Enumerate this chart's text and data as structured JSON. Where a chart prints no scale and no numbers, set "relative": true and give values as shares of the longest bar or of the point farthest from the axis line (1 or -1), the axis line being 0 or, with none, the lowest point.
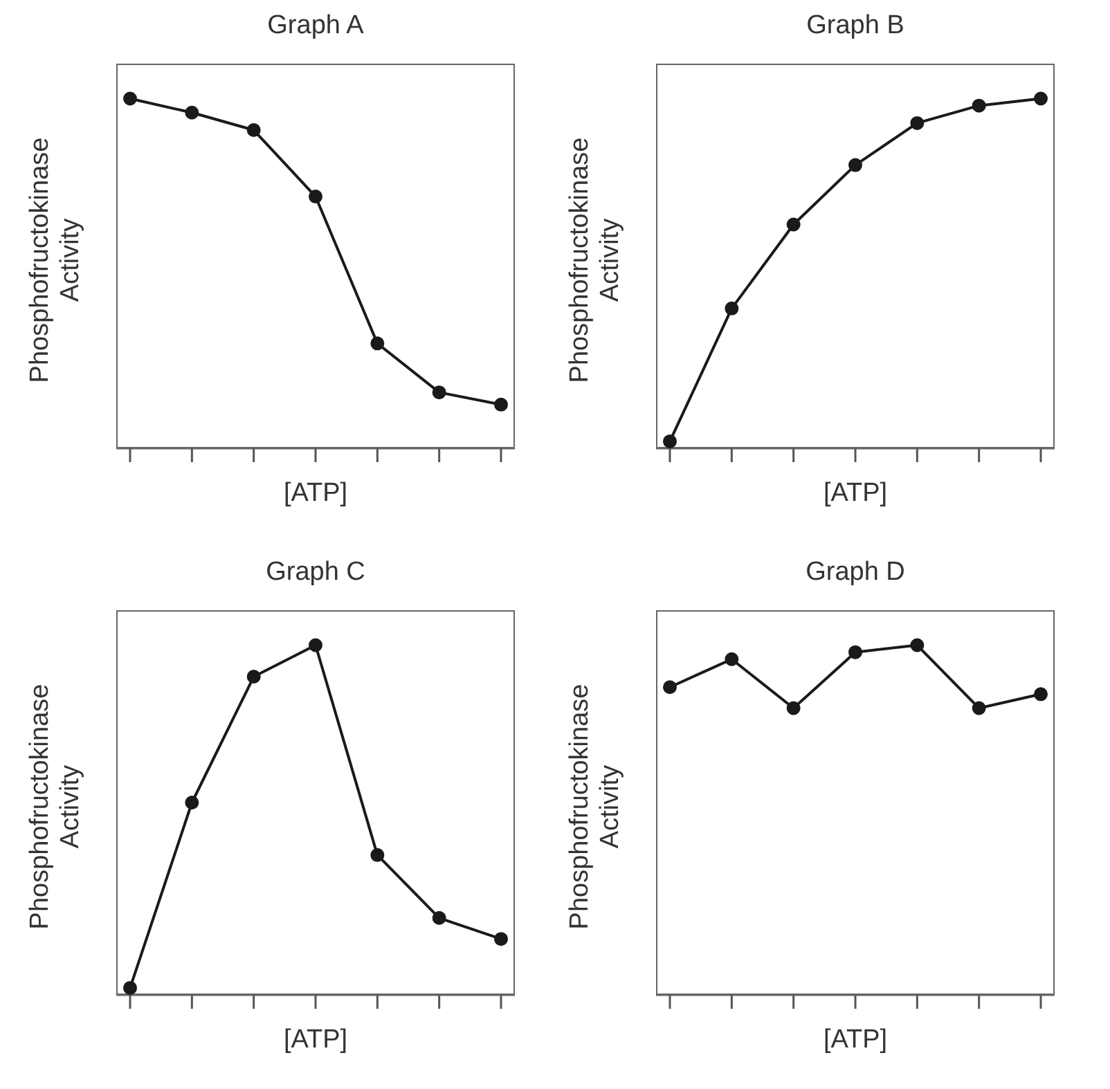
{
  "chart_data": [
    {
      "type": "line",
      "title": "Graph A",
      "xlabel": "[ATP]",
      "ylabel": "Phosphofructokinase Activity",
      "relative": true,
      "marker": "circle",
      "line_style": "solid",
      "categories": [
        null,
        null,
        null,
        null,
        null,
        null,
        null
      ],
      "series": [
        {
          "color": "#1a1a1a",
          "values": [
            1,
            0.96,
            0.91,
            0.72,
            0.3,
            0.16,
            0.125
          ]
        }
      ]
    },
    {
      "type": "line",
      "title": "Graph B",
      "xlabel": "[ATP]",
      "ylabel": "Phosphofructokinase Activity",
      "relative": true,
      "marker": "circle",
      "line_style": "solid",
      "categories": [
        null,
        null,
        null,
        null,
        null,
        null,
        null
      ],
      "series": [
        {
          "color": "#1a1a1a",
          "values": [
            0.02,
            0.4,
            0.64,
            0.81,
            0.93,
            0.98,
            1
          ]
        }
      ]
    },
    {
      "type": "line",
      "title": "Graph C",
      "xlabel": "[ATP]",
      "ylabel": "Phosphofructokinase Activity",
      "relative": true,
      "marker": "circle",
      "line_style": "solid",
      "categories": [
        null,
        null,
        null,
        null,
        null,
        null,
        null
      ],
      "series": [
        {
          "color": "#1a1a1a",
          "values": [
            0.02,
            0.55,
            0.91,
            1,
            0.4,
            0.22,
            0.16
          ]
        }
      ]
    },
    {
      "type": "line",
      "title": "Graph D",
      "xlabel": "[ATP]",
      "ylabel": "Phosphofructokinase Activity",
      "relative": true,
      "marker": "circle",
      "line_style": "solid",
      "categories": [
        null,
        null,
        null,
        null,
        null,
        null,
        null
      ],
      "series": [
        {
          "color": "#1a1a1a",
          "values": [
            0.88,
            0.96,
            0.82,
            0.98,
            1,
            0.82,
            0.86
          ]
        }
      ]
    }
  ]
}
